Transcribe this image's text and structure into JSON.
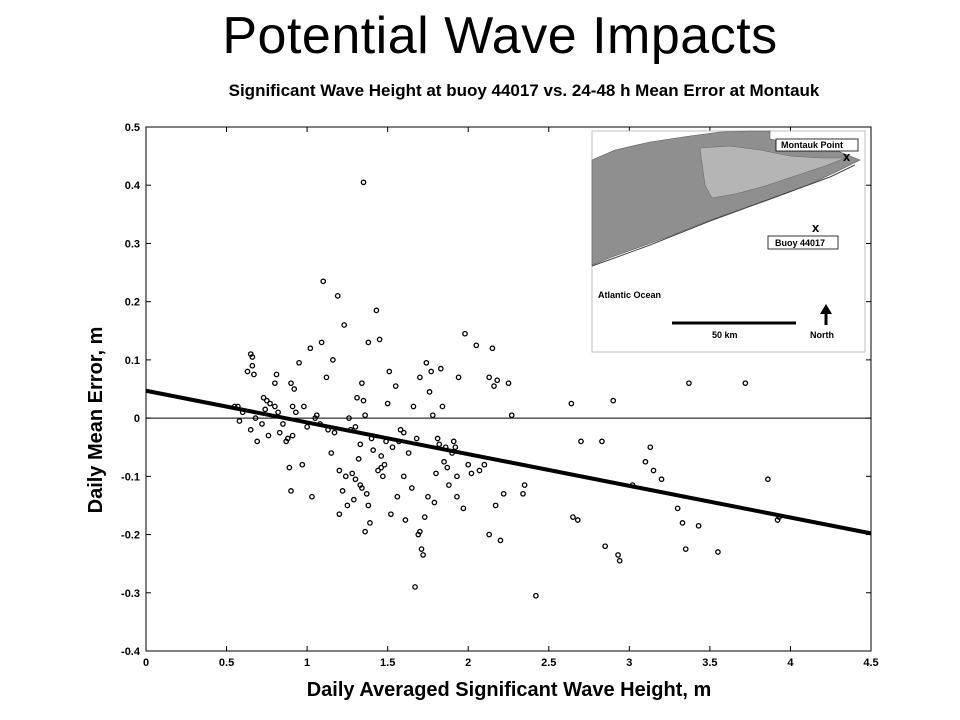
{
  "title": "Potential Wave Impacts",
  "chart_data": {
    "type": "scatter",
    "title": "Significant Wave Height at buoy 44017 vs. 24-48 h Mean Error at Montauk",
    "xlabel": "Daily Averaged Significant Wave Height, m",
    "ylabel": "Daily Mean Error, m",
    "xlim": [
      0,
      4.5
    ],
    "ylim": [
      -0.4,
      0.5
    ],
    "xticks": [
      0,
      0.5,
      1,
      1.5,
      2,
      2.5,
      3,
      3.5,
      4,
      4.5
    ],
    "xtick_labels": [
      "0",
      "0.5",
      "1",
      "1.5",
      "2",
      "2.5",
      "3",
      "3.5",
      "4",
      "4.5"
    ],
    "yticks": [
      -0.4,
      -0.3,
      -0.2,
      -0.1,
      0,
      0.1,
      0.2,
      0.3,
      0.4,
      0.5
    ],
    "ytick_labels": [
      "-0.4",
      "-0.3",
      "-0.2",
      "-0.1",
      "0",
      "0.1",
      "0.2",
      "0.3",
      "0.4",
      "0.5"
    ],
    "zero_line": true,
    "trend_line": {
      "x": [
        0,
        4.5
      ],
      "y": [
        0.047,
        -0.198
      ]
    },
    "points": [
      [
        0.55,
        0.02
      ],
      [
        0.57,
        0.02
      ],
      [
        0.58,
        -0.005
      ],
      [
        0.6,
        0.01
      ],
      [
        0.63,
        0.08
      ],
      [
        0.65,
        0.11
      ],
      [
        0.66,
        0.105
      ],
      [
        0.66,
        0.09
      ],
      [
        0.67,
        0.075
      ],
      [
        0.68,
        0.0
      ],
      [
        0.65,
        -0.02
      ],
      [
        0.69,
        -0.04
      ],
      [
        0.72,
        -0.01
      ],
      [
        0.73,
        0.035
      ],
      [
        0.74,
        0.015
      ],
      [
        0.75,
        0.03
      ],
      [
        0.76,
        -0.03
      ],
      [
        0.77,
        0.025
      ],
      [
        0.8,
        0.06
      ],
      [
        0.81,
        0.075
      ],
      [
        0.8,
        0.02
      ],
      [
        0.82,
        0.01
      ],
      [
        0.83,
        -0.025
      ],
      [
        0.85,
        -0.01
      ],
      [
        0.87,
        -0.04
      ],
      [
        0.88,
        -0.035
      ],
      [
        0.89,
        -0.085
      ],
      [
        0.9,
        0.06
      ],
      [
        0.9,
        -0.125
      ],
      [
        0.91,
        -0.03
      ],
      [
        0.91,
        0.02
      ],
      [
        0.92,
        0.05
      ],
      [
        0.93,
        0.01
      ],
      [
        0.95,
        0.095
      ],
      [
        0.97,
        -0.08
      ],
      [
        0.98,
        0.02
      ],
      [
        1.0,
        -0.015
      ],
      [
        1.02,
        0.12
      ],
      [
        1.03,
        -0.135
      ],
      [
        1.05,
        0.0
      ],
      [
        1.06,
        0.005
      ],
      [
        1.08,
        -0.01
      ],
      [
        1.09,
        0.13
      ],
      [
        1.1,
        0.235
      ],
      [
        1.12,
        0.07
      ],
      [
        1.13,
        -0.02
      ],
      [
        1.15,
        -0.06
      ],
      [
        1.16,
        0.1
      ],
      [
        1.17,
        -0.025
      ],
      [
        1.19,
        0.21
      ],
      [
        1.2,
        -0.09
      ],
      [
        1.2,
        -0.165
      ],
      [
        1.22,
        -0.125
      ],
      [
        1.23,
        0.16
      ],
      [
        1.24,
        -0.1
      ],
      [
        1.25,
        -0.15
      ],
      [
        1.26,
        0.0
      ],
      [
        1.27,
        -0.02
      ],
      [
        1.28,
        -0.095
      ],
      [
        1.29,
        -0.14
      ],
      [
        1.3,
        -0.105
      ],
      [
        1.3,
        -0.015
      ],
      [
        1.31,
        0.035
      ],
      [
        1.32,
        -0.07
      ],
      [
        1.33,
        -0.045
      ],
      [
        1.33,
        -0.115
      ],
      [
        1.34,
        0.06
      ],
      [
        1.34,
        -0.12
      ],
      [
        1.35,
        0.405
      ],
      [
        1.35,
        0.03
      ],
      [
        1.36,
        -0.195
      ],
      [
        1.36,
        0.005
      ],
      [
        1.37,
        -0.13
      ],
      [
        1.38,
        0.13
      ],
      [
        1.38,
        -0.15
      ],
      [
        1.39,
        -0.18
      ],
      [
        1.4,
        -0.035
      ],
      [
        1.41,
        -0.055
      ],
      [
        1.43,
        0.185
      ],
      [
        1.44,
        -0.09
      ],
      [
        1.45,
        0.135
      ],
      [
        1.46,
        -0.065
      ],
      [
        1.46,
        -0.085
      ],
      [
        1.47,
        -0.1
      ],
      [
        1.48,
        -0.08
      ],
      [
        1.49,
        -0.04
      ],
      [
        1.5,
        0.025
      ],
      [
        1.51,
        0.08
      ],
      [
        1.52,
        -0.165
      ],
      [
        1.53,
        -0.05
      ],
      [
        1.55,
        0.055
      ],
      [
        1.56,
        -0.135
      ],
      [
        1.57,
        -0.04
      ],
      [
        1.58,
        -0.02
      ],
      [
        1.6,
        -0.025
      ],
      [
        1.6,
        -0.1
      ],
      [
        1.61,
        -0.175
      ],
      [
        1.63,
        -0.06
      ],
      [
        1.65,
        -0.12
      ],
      [
        1.66,
        0.02
      ],
      [
        1.67,
        -0.29
      ],
      [
        1.68,
        -0.035
      ],
      [
        1.69,
        -0.2
      ],
      [
        1.7,
        0.07
      ],
      [
        1.7,
        -0.195
      ],
      [
        1.71,
        -0.225
      ],
      [
        1.72,
        -0.235
      ],
      [
        1.73,
        -0.17
      ],
      [
        1.74,
        0.095
      ],
      [
        1.75,
        -0.135
      ],
      [
        1.76,
        0.045
      ],
      [
        1.77,
        0.08
      ],
      [
        1.78,
        0.005
      ],
      [
        1.79,
        -0.145
      ],
      [
        1.8,
        -0.095
      ],
      [
        1.81,
        -0.035
      ],
      [
        1.82,
        -0.045
      ],
      [
        1.83,
        0.085
      ],
      [
        1.84,
        0.02
      ],
      [
        1.85,
        -0.075
      ],
      [
        1.86,
        -0.05
      ],
      [
        1.87,
        -0.085
      ],
      [
        1.88,
        -0.115
      ],
      [
        1.9,
        -0.06
      ],
      [
        1.91,
        -0.04
      ],
      [
        1.92,
        -0.05
      ],
      [
        1.93,
        -0.135
      ],
      [
        1.93,
        -0.1
      ],
      [
        1.94,
        0.07
      ],
      [
        1.97,
        -0.155
      ],
      [
        1.98,
        0.145
      ],
      [
        2.0,
        -0.08
      ],
      [
        2.02,
        -0.095
      ],
      [
        2.05,
        0.125
      ],
      [
        2.07,
        -0.09
      ],
      [
        2.1,
        -0.08
      ],
      [
        2.13,
        -0.2
      ],
      [
        2.13,
        0.07
      ],
      [
        2.15,
        0.12
      ],
      [
        2.16,
        0.055
      ],
      [
        2.17,
        -0.15
      ],
      [
        2.18,
        0.065
      ],
      [
        2.2,
        -0.21
      ],
      [
        2.22,
        -0.13
      ],
      [
        2.25,
        0.06
      ],
      [
        2.27,
        0.005
      ],
      [
        2.34,
        -0.13
      ],
      [
        2.35,
        -0.115
      ],
      [
        2.42,
        -0.305
      ],
      [
        2.64,
        0.025
      ],
      [
        2.65,
        -0.17
      ],
      [
        2.68,
        -0.175
      ],
      [
        2.7,
        -0.04
      ],
      [
        2.83,
        -0.04
      ],
      [
        2.85,
        -0.22
      ],
      [
        2.9,
        0.03
      ],
      [
        2.93,
        -0.235
      ],
      [
        2.94,
        -0.245
      ],
      [
        3.02,
        -0.115
      ],
      [
        3.1,
        -0.075
      ],
      [
        3.13,
        -0.05
      ],
      [
        3.15,
        -0.09
      ],
      [
        3.2,
        -0.105
      ],
      [
        3.3,
        -0.155
      ],
      [
        3.33,
        -0.18
      ],
      [
        3.35,
        -0.225
      ],
      [
        3.37,
        0.06
      ],
      [
        3.43,
        -0.185
      ],
      [
        3.55,
        -0.23
      ],
      [
        3.72,
        0.06
      ],
      [
        3.86,
        -0.105
      ],
      [
        3.92,
        -0.175
      ],
      [
        3.93,
        -0.17
      ]
    ]
  },
  "inset_map": {
    "labels": {
      "montauk": "Montauk Point",
      "buoy": "Buoy 44017",
      "ocean": "Atlantic Ocean",
      "scale": "50 km",
      "north": "North"
    },
    "marker": "x",
    "colors": {
      "land": "#8f8f8f",
      "land_dark": "#6a6a6a",
      "water": "#ffffff",
      "frame": "#bfbfbf"
    }
  }
}
